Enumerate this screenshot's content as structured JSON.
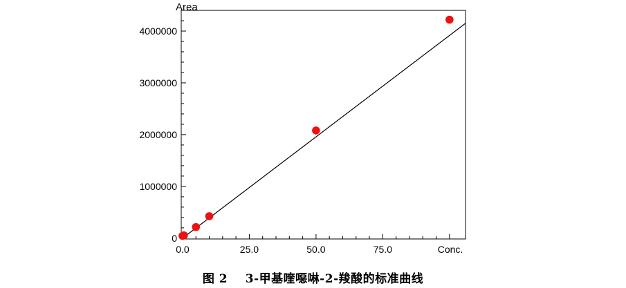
{
  "chart_data": {
    "type": "scatter",
    "ylabel": "Area",
    "xlabel": "Conc.",
    "xlim": [
      -0.5,
      106
    ],
    "ylim": [
      -15000,
      4400000
    ],
    "x_ticks": [
      0.0,
      25.0,
      50.0,
      75.0
    ],
    "x_tick_labels": [
      "0.0",
      "25.0",
      "50.0",
      "75.0"
    ],
    "y_ticks": [
      0,
      1000000,
      2000000,
      3000000,
      4000000
    ],
    "y_tick_labels": [
      "0",
      "1000000",
      "2000000",
      "3000000",
      "4000000"
    ],
    "series": [
      {
        "points": [
          {
            "x": 0.0,
            "y": 45000
          },
          {
            "x": 0.5,
            "y": 55000
          },
          {
            "x": 5.0,
            "y": 215000
          },
          {
            "x": 10.0,
            "y": 425000
          },
          {
            "x": 50.0,
            "y": 2080000
          },
          {
            "x": 100.0,
            "y": 4220000
          }
        ],
        "color": "#ee1111"
      }
    ],
    "fit_line": {
      "x": [
        0,
        106
      ],
      "y": [
        0,
        4150000
      ],
      "color": "#000000"
    },
    "grid": false,
    "legend": "none"
  },
  "caption": {
    "figure_no": "图 2",
    "title": "3-甲基喹噁啉-2-羧酸的标准曲线"
  }
}
